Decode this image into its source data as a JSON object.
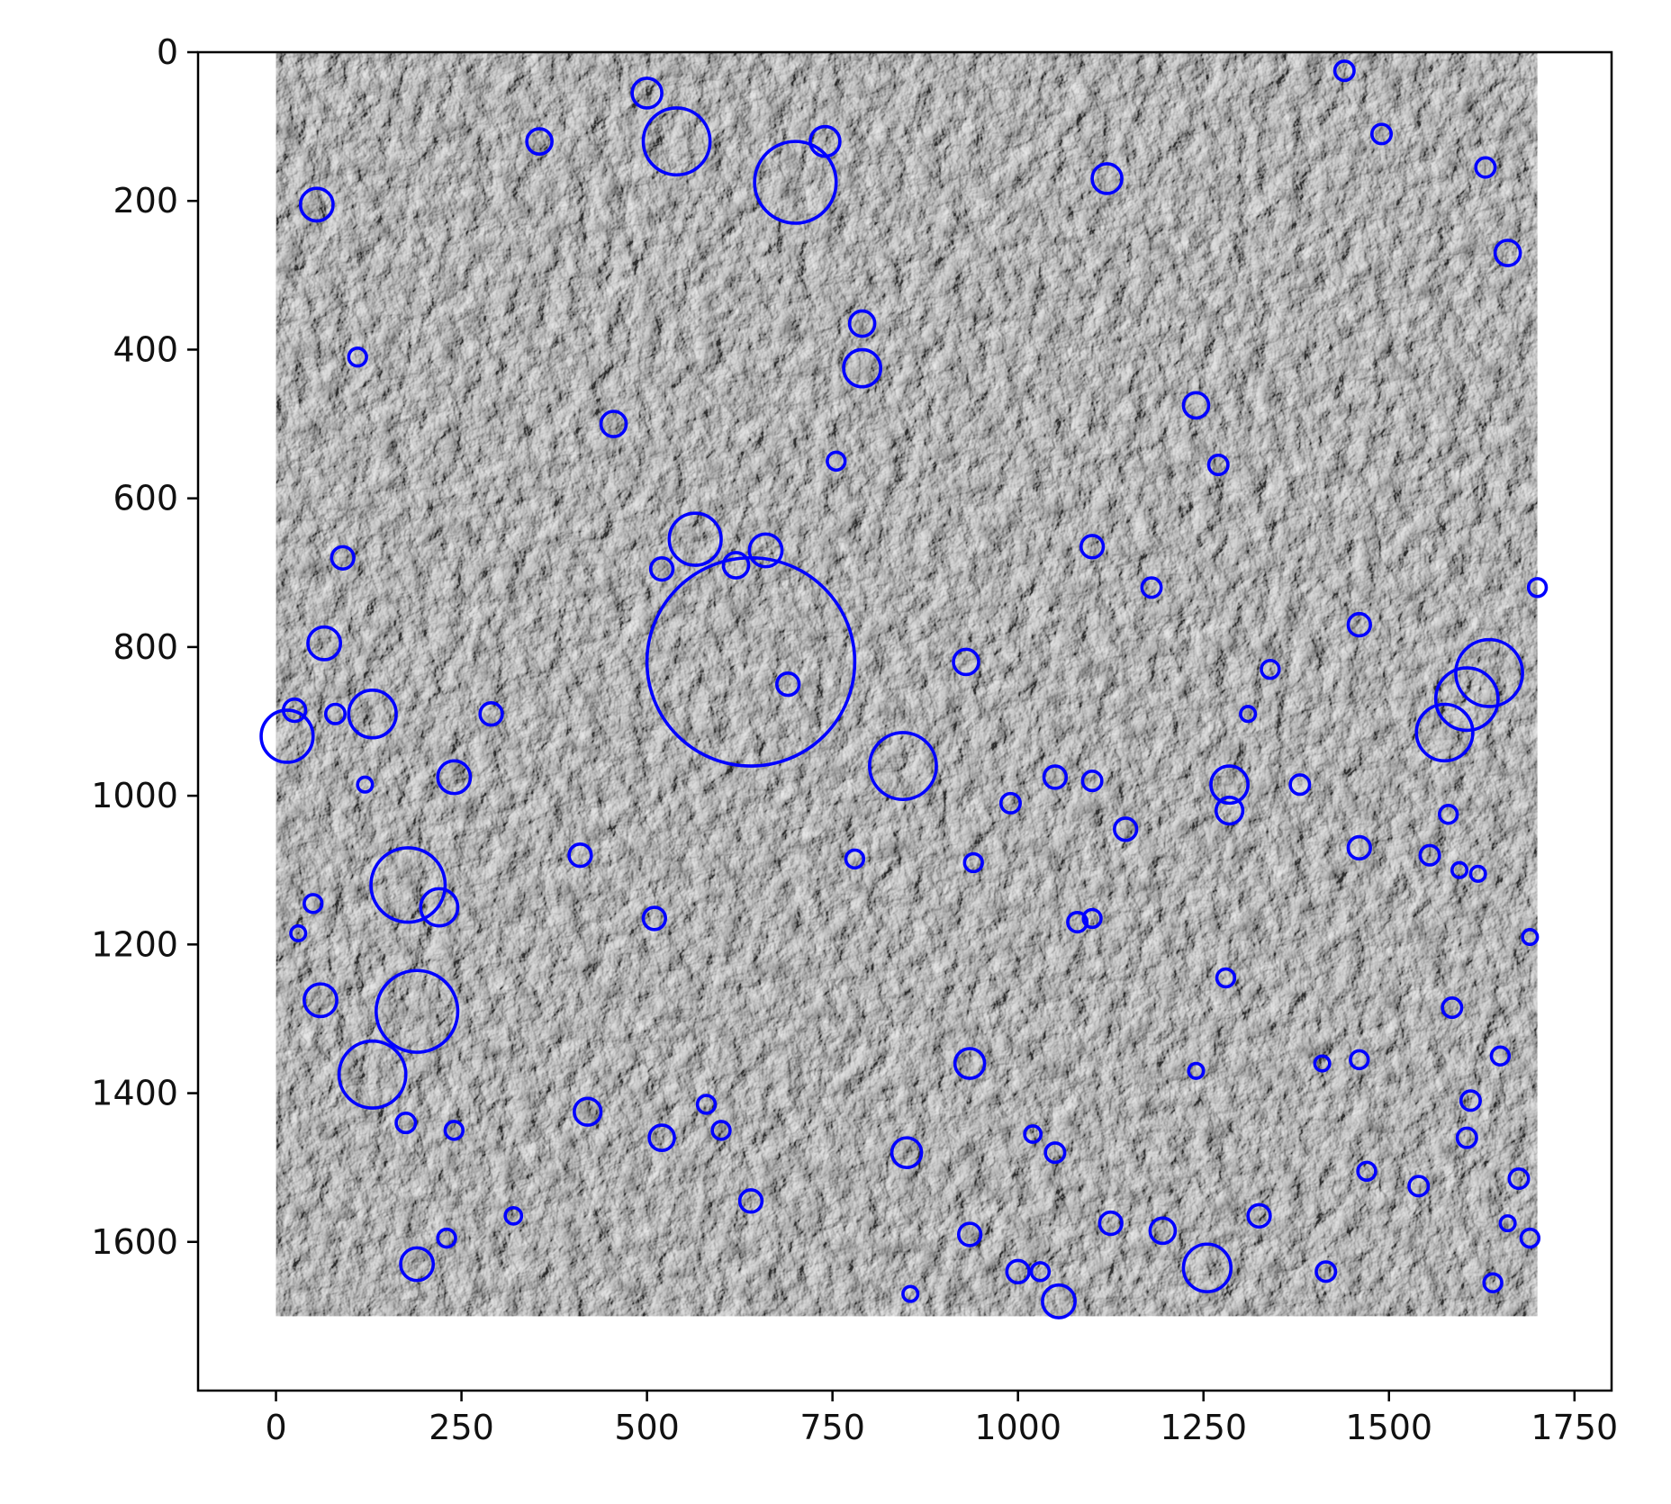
{
  "chart_data": {
    "type": "scatter",
    "title": "",
    "xlabel": "",
    "ylabel": "",
    "xlim": [
      -105,
      1800
    ],
    "ylim": [
      1800,
      0
    ],
    "y_inverted": true,
    "grid": false,
    "legend": "none",
    "background": "grayscale lunar/planetary surface image spanning x 0–1700, y 0–1700",
    "image_extent": [
      0,
      1700,
      1700,
      0
    ],
    "marker_color": "#0000ff",
    "x_ticks": [
      0,
      250,
      500,
      750,
      1000,
      1250,
      1500,
      1750
    ],
    "x_tick_labels": [
      "0",
      "250",
      "500",
      "750",
      "1000",
      "1250",
      "1500",
      "1750"
    ],
    "y_ticks": [
      0,
      200,
      400,
      600,
      800,
      1000,
      1200,
      1400,
      1600
    ],
    "y_tick_labels": [
      "0",
      "200",
      "400",
      "600",
      "800",
      "1000",
      "1200",
      "1400",
      "1600"
    ],
    "circles_note": "detected craters drawn as circle outlines: [x, y, radius] in data units",
    "circles": [
      [
        640,
        820,
        140
      ],
      [
        178,
        1120,
        50
      ],
      [
        190,
        1290,
        55
      ],
      [
        130,
        1375,
        45
      ],
      [
        700,
        175,
        55
      ],
      [
        540,
        120,
        45
      ],
      [
        845,
        960,
        45
      ],
      [
        1635,
        835,
        45
      ],
      [
        1605,
        870,
        42
      ],
      [
        1575,
        915,
        38
      ],
      [
        15,
        920,
        35
      ],
      [
        130,
        890,
        32
      ],
      [
        565,
        655,
        35
      ],
      [
        1255,
        1635,
        32
      ],
      [
        1055,
        1680,
        22
      ],
      [
        790,
        425,
        25
      ],
      [
        65,
        795,
        22
      ],
      [
        60,
        1275,
        22
      ],
      [
        55,
        205,
        22
      ],
      [
        240,
        975,
        22
      ],
      [
        220,
        1150,
        25
      ],
      [
        190,
        1630,
        22
      ],
      [
        1285,
        985,
        25
      ],
      [
        850,
        1480,
        20
      ],
      [
        935,
        1360,
        20
      ],
      [
        930,
        820,
        17
      ],
      [
        1120,
        170,
        20
      ],
      [
        1660,
        270,
        17
      ],
      [
        455,
        500,
        17
      ],
      [
        500,
        55,
        20
      ],
      [
        1630,
        155,
        13
      ],
      [
        1460,
        770,
        15
      ],
      [
        1285,
        1020,
        18
      ],
      [
        1100,
        665,
        15
      ],
      [
        420,
        1425,
        18
      ],
      [
        520,
        1460,
        17
      ],
      [
        790,
        365,
        17
      ],
      [
        1415,
        1640,
        13
      ],
      [
        355,
        120,
        17
      ],
      [
        90,
        680,
        15
      ],
      [
        1240,
        475,
        17
      ],
      [
        1585,
        1285,
        13
      ],
      [
        1460,
        1070,
        15
      ],
      [
        1000,
        1640,
        15
      ],
      [
        1125,
        1575,
        15
      ],
      [
        1380,
        985,
        13
      ],
      [
        660,
        670,
        22
      ],
      [
        740,
        120,
        20
      ],
      [
        620,
        690,
        17
      ],
      [
        520,
        695,
        15
      ],
      [
        1195,
        1585,
        17
      ],
      [
        1145,
        1045,
        15
      ],
      [
        690,
        850,
        15
      ],
      [
        1050,
        975,
        15
      ],
      [
        25,
        885,
        15
      ],
      [
        935,
        1590,
        15
      ],
      [
        510,
        1165,
        15
      ],
      [
        640,
        1545,
        15
      ],
      [
        290,
        890,
        15
      ],
      [
        80,
        890,
        13
      ],
      [
        1050,
        1480,
        13
      ],
      [
        1610,
        1410,
        13
      ],
      [
        410,
        1080,
        15
      ],
      [
        1605,
        1460,
        13
      ],
      [
        1490,
        110,
        13
      ],
      [
        1440,
        25,
        13
      ],
      [
        30,
        1185,
        10
      ],
      [
        1700,
        720,
        12
      ],
      [
        110,
        410,
        12
      ],
      [
        1325,
        1565,
        15
      ],
      [
        1690,
        1190,
        10
      ],
      [
        1675,
        1515,
        13
      ],
      [
        1340,
        830,
        12
      ],
      [
        1580,
        1025,
        12
      ],
      [
        1100,
        980,
        13
      ],
      [
        940,
        1090,
        12
      ],
      [
        755,
        550,
        12
      ],
      [
        1270,
        555,
        13
      ],
      [
        1640,
        1655,
        12
      ],
      [
        1030,
        1640,
        12
      ],
      [
        1470,
        1505,
        12
      ],
      [
        580,
        1415,
        12
      ],
      [
        175,
        1440,
        13
      ],
      [
        50,
        1145,
        12
      ],
      [
        1690,
        1595,
        12
      ],
      [
        240,
        1450,
        12
      ],
      [
        1540,
        1525,
        13
      ],
      [
        1555,
        1080,
        13
      ],
      [
        600,
        1450,
        12
      ],
      [
        230,
        1595,
        12
      ],
      [
        120,
        985,
        10
      ],
      [
        1180,
        720,
        13
      ],
      [
        1100,
        1165,
        12
      ],
      [
        1080,
        1170,
        13
      ],
      [
        990,
        1010,
        13
      ],
      [
        1020,
        1455,
        11
      ],
      [
        320,
        1565,
        11
      ],
      [
        1280,
        1245,
        12
      ],
      [
        1660,
        1575,
        10
      ],
      [
        1460,
        1355,
        12
      ],
      [
        780,
        1085,
        12
      ],
      [
        855,
        1670,
        10
      ],
      [
        1650,
        1350,
        12
      ],
      [
        1240,
        1370,
        10
      ],
      [
        1310,
        890,
        10
      ],
      [
        1595,
        1100,
        10
      ],
      [
        1410,
        1360,
        10
      ],
      [
        1620,
        1105,
        10
      ]
    ]
  }
}
